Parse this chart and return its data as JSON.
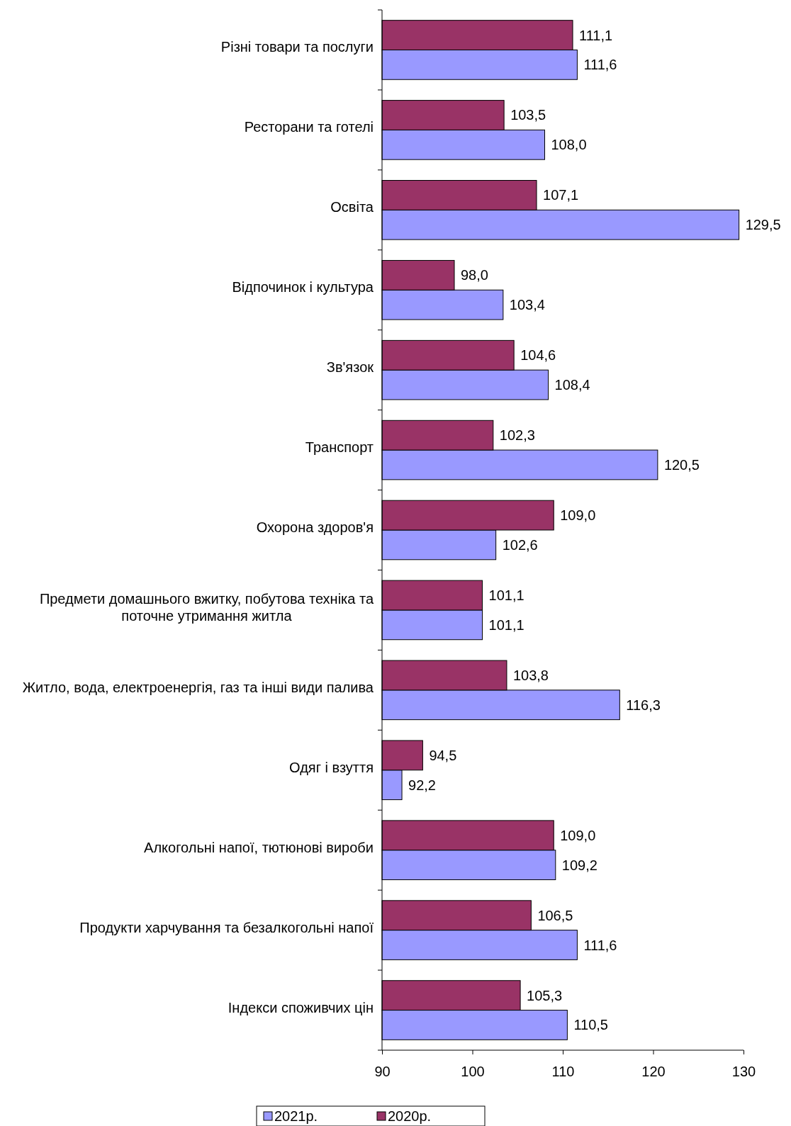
{
  "chart_data": {
    "type": "bar",
    "orientation": "horizontal",
    "categories": [
      "Різні товари та послуги",
      "Ресторани та готелі",
      "Освіта",
      "Відпочинок і культура",
      "Зв'язок",
      "Транспорт",
      "Охорона здоров'я",
      "Предмети домашнього вжитку, побутова техніка та поточне утримання житла",
      "Житло, вода, електроенергія, газ та інші види палива",
      "Одяг і взуття",
      "Алкогольні напої, тютюнові вироби",
      "Продукти харчування та безалкогольні напої",
      "Індекси споживчих цін"
    ],
    "series": [
      {
        "name": "2021р.",
        "color": "#9999ff",
        "values": [
          111.6,
          108.0,
          129.5,
          103.4,
          108.4,
          120.5,
          102.6,
          101.1,
          116.3,
          92.2,
          109.2,
          111.6,
          110.5
        ],
        "value_labels": [
          "111,6",
          "108,0",
          "129,5",
          "103,4",
          "108,4",
          "120,5",
          "102,6",
          "101,1",
          "116,3",
          "92,2",
          "109,2",
          "111,6",
          "110,5"
        ]
      },
      {
        "name": "2020р.",
        "color": "#993366",
        "values": [
          111.1,
          103.5,
          107.1,
          98.0,
          104.6,
          102.3,
          109.0,
          101.1,
          103.8,
          94.5,
          109.0,
          106.5,
          105.3
        ],
        "value_labels": [
          "111,1",
          "103,5",
          "107,1",
          "98,0",
          "104,6",
          "102,3",
          "109,0",
          "101,1",
          "103,8",
          "94,5",
          "109,0",
          "106,5",
          "105,3"
        ]
      }
    ],
    "xlim": [
      90,
      130
    ],
    "xticks": [
      90,
      100,
      110,
      120,
      130
    ],
    "legend": "bottom"
  }
}
